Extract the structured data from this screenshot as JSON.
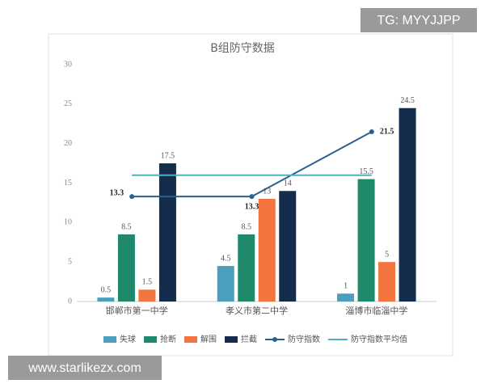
{
  "chart_data": {
    "type": "bar",
    "title": "B组防守数据",
    "categories": [
      "邯郸市第一中学",
      "孝义市第二中学",
      "淄博市临淄中学"
    ],
    "series": [
      {
        "name": "失球",
        "type": "bar",
        "color": "#4b9fbc",
        "values": [
          0.5,
          4.5,
          1
        ]
      },
      {
        "name": "抢断",
        "type": "bar",
        "color": "#1f8a6b",
        "values": [
          8.5,
          8.5,
          15.5
        ]
      },
      {
        "name": "解围",
        "type": "bar",
        "color": "#f2743f",
        "values": [
          1.5,
          13,
          5
        ]
      },
      {
        "name": "拦截",
        "type": "bar",
        "color": "#142d4c",
        "values": [
          17.5,
          14,
          24.5
        ]
      },
      {
        "name": "防守指数",
        "type": "line",
        "color": "#2b5f8e",
        "marker": true,
        "values": [
          13.3,
          13.3,
          21.5
        ]
      },
      {
        "name": "防守指数平均值",
        "type": "line",
        "color": "#4bb3bc",
        "marker": false,
        "values": [
          16,
          16,
          16
        ]
      }
    ],
    "ylim": [
      0,
      30
    ],
    "yticks": [
      0,
      5,
      10,
      15,
      20,
      25,
      30
    ],
    "grid": false,
    "legend": "bottom"
  },
  "overlays": {
    "top_right": "TG: MYYJJPP",
    "bottom_left": "www.starlikezx.com"
  }
}
